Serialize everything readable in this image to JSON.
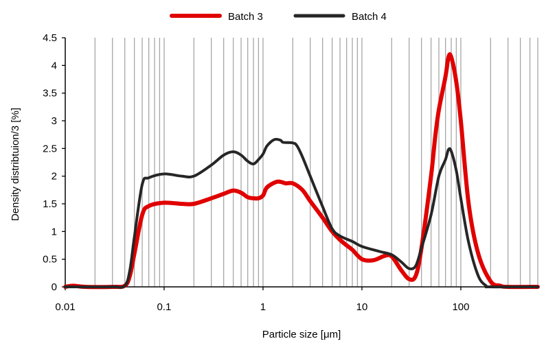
{
  "chart_data": {
    "type": "line",
    "title": "",
    "xlabel": "Particle size [μm]",
    "ylabel": "Density distribtuion/3 [%]",
    "x_scale": "log",
    "xlim": [
      0.01,
      600
    ],
    "ylim": [
      0,
      4.5
    ],
    "x_ticks": [
      0.01,
      0.1,
      1,
      10,
      100
    ],
    "x_tick_labels": [
      "0.01",
      "0.1",
      "1",
      "10",
      "100"
    ],
    "y_ticks": [
      0,
      0.5,
      1,
      1.5,
      2,
      2.5,
      3,
      3.5,
      4,
      4.5
    ],
    "y_tick_labels": [
      "0",
      "0.5",
      "1",
      "1.5",
      "2",
      "2.5",
      "3",
      "3.5",
      "4",
      "4.5"
    ],
    "grid": "vertical",
    "legend_position": "top",
    "series": [
      {
        "name": "Batch 3",
        "color": "#e00000",
        "points": [
          [
            0.01,
            0.0
          ],
          [
            0.012,
            0.02
          ],
          [
            0.016,
            0.0
          ],
          [
            0.03,
            0.0
          ],
          [
            0.04,
            0.02
          ],
          [
            0.045,
            0.2
          ],
          [
            0.05,
            0.6
          ],
          [
            0.06,
            1.3
          ],
          [
            0.07,
            1.46
          ],
          [
            0.1,
            1.52
          ],
          [
            0.15,
            1.5
          ],
          [
            0.2,
            1.5
          ],
          [
            0.3,
            1.6
          ],
          [
            0.4,
            1.68
          ],
          [
            0.5,
            1.74
          ],
          [
            0.6,
            1.7
          ],
          [
            0.7,
            1.62
          ],
          [
            0.8,
            1.6
          ],
          [
            0.9,
            1.6
          ],
          [
            1.0,
            1.65
          ],
          [
            1.1,
            1.8
          ],
          [
            1.4,
            1.9
          ],
          [
            1.7,
            1.87
          ],
          [
            2.0,
            1.87
          ],
          [
            2.5,
            1.75
          ],
          [
            3.0,
            1.55
          ],
          [
            4.0,
            1.25
          ],
          [
            5.0,
            1.0
          ],
          [
            6.0,
            0.85
          ],
          [
            7.0,
            0.75
          ],
          [
            8.0,
            0.67
          ],
          [
            10.0,
            0.5
          ],
          [
            13.0,
            0.48
          ],
          [
            17.0,
            0.56
          ],
          [
            20.0,
            0.55
          ],
          [
            25.0,
            0.3
          ],
          [
            30.0,
            0.14
          ],
          [
            35.0,
            0.2
          ],
          [
            40.0,
            0.7
          ],
          [
            50.0,
            2.0
          ],
          [
            55.0,
            2.7
          ],
          [
            60.0,
            3.2
          ],
          [
            70.0,
            3.8
          ],
          [
            75.0,
            4.15
          ],
          [
            80.0,
            4.15
          ],
          [
            90.0,
            3.7
          ],
          [
            100.0,
            3.0
          ],
          [
            120.0,
            1.5
          ],
          [
            150.0,
            0.6
          ],
          [
            200.0,
            0.1
          ],
          [
            250.0,
            0.02
          ],
          [
            300.0,
            0.0
          ],
          [
            600.0,
            0.0
          ]
        ]
      },
      {
        "name": "Batch 4",
        "color": "#262626",
        "points": [
          [
            0.01,
            0.0
          ],
          [
            0.03,
            0.0
          ],
          [
            0.04,
            0.02
          ],
          [
            0.045,
            0.3
          ],
          [
            0.05,
            0.9
          ],
          [
            0.06,
            1.85
          ],
          [
            0.07,
            1.97
          ],
          [
            0.1,
            2.04
          ],
          [
            0.15,
            2.0
          ],
          [
            0.2,
            2.0
          ],
          [
            0.3,
            2.2
          ],
          [
            0.4,
            2.38
          ],
          [
            0.5,
            2.44
          ],
          [
            0.6,
            2.38
          ],
          [
            0.7,
            2.27
          ],
          [
            0.8,
            2.22
          ],
          [
            0.9,
            2.3
          ],
          [
            1.0,
            2.4
          ],
          [
            1.1,
            2.55
          ],
          [
            1.3,
            2.66
          ],
          [
            1.5,
            2.65
          ],
          [
            1.6,
            2.61
          ],
          [
            2.0,
            2.6
          ],
          [
            2.2,
            2.55
          ],
          [
            2.5,
            2.35
          ],
          [
            3.0,
            2.0
          ],
          [
            4.0,
            1.45
          ],
          [
            5.0,
            1.05
          ],
          [
            6.0,
            0.92
          ],
          [
            8.0,
            0.82
          ],
          [
            10.0,
            0.73
          ],
          [
            15.0,
            0.64
          ],
          [
            20.0,
            0.58
          ],
          [
            25.0,
            0.45
          ],
          [
            30.0,
            0.33
          ],
          [
            35.0,
            0.38
          ],
          [
            40.0,
            0.7
          ],
          [
            50.0,
            1.3
          ],
          [
            60.0,
            2.0
          ],
          [
            70.0,
            2.3
          ],
          [
            75.0,
            2.48
          ],
          [
            80.0,
            2.45
          ],
          [
            90.0,
            2.1
          ],
          [
            100.0,
            1.6
          ],
          [
            120.0,
            0.8
          ],
          [
            150.0,
            0.2
          ],
          [
            180.0,
            0.02
          ],
          [
            200.0,
            0.0
          ],
          [
            600.0,
            0.0
          ]
        ]
      }
    ]
  }
}
